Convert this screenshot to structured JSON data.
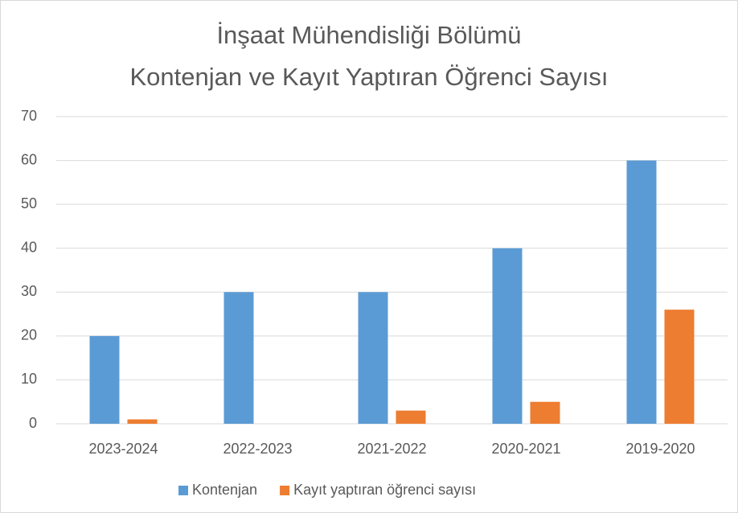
{
  "chart_data": {
    "type": "bar",
    "title": [
      "İnşaat Mühendisliği Bölümü",
      "Kontenjan ve Kayıt Yaptıran Öğrenci Sayısı"
    ],
    "categories": [
      "2023-2024",
      "2022-2023",
      "2021-2022",
      "2020-2021",
      "2019-2020"
    ],
    "series": [
      {
        "name": "Kontenjan",
        "color": "#5b9bd5",
        "values": [
          20,
          30,
          30,
          40,
          60
        ]
      },
      {
        "name": "Kayıt yaptıran öğrenci sayısı",
        "color": "#ed7d31",
        "values": [
          1,
          0,
          3,
          5,
          26
        ]
      }
    ],
    "ylim": [
      0,
      70
    ],
    "yticks": [
      0,
      10,
      20,
      30,
      40,
      50,
      60,
      70
    ],
    "grid": true,
    "legend": "bottom"
  }
}
